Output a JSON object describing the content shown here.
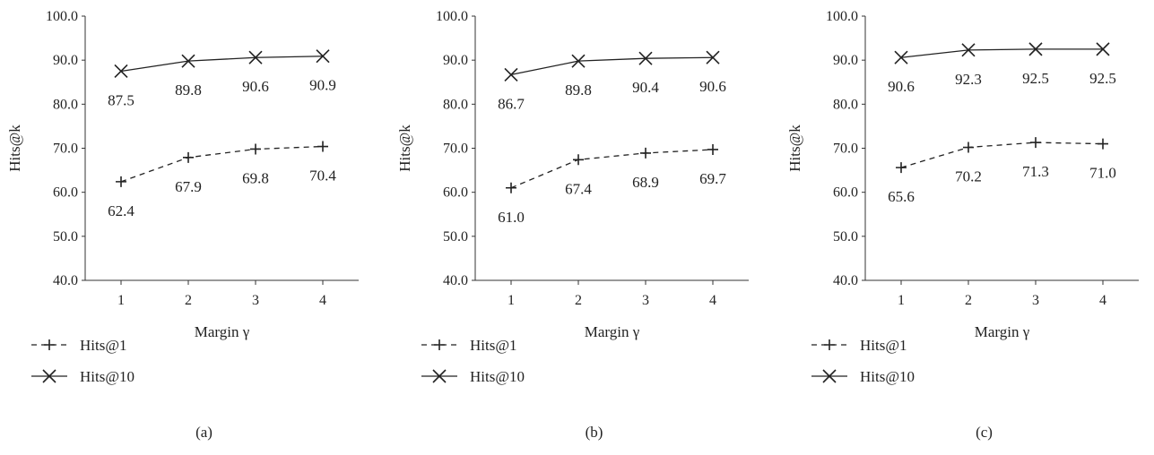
{
  "chart_data": [
    {
      "type": "line",
      "panel_label": "(a)",
      "xlabel": "Margin γ",
      "ylabel": "Hits@k",
      "categories": [
        "1",
        "2",
        "3",
        "4"
      ],
      "ylim": [
        40.0,
        100.0
      ],
      "yticks": [
        "40.0",
        "50.0",
        "60.0",
        "70.0",
        "80.0",
        "90.0",
        "100.0"
      ],
      "grid": false,
      "legend_position": "bottom-left",
      "series": [
        {
          "name": "Hits@1",
          "values": [
            62.4,
            67.9,
            69.8,
            70.4
          ],
          "labels": [
            "62.4",
            "67.9",
            "69.8",
            "70.4"
          ],
          "marker": "plus",
          "line_style": "dashed"
        },
        {
          "name": "Hits@10",
          "values": [
            87.5,
            89.8,
            90.6,
            90.9
          ],
          "labels": [
            "87.5",
            "89.8",
            "90.6",
            "90.9"
          ],
          "marker": "cross",
          "line_style": "solid"
        }
      ]
    },
    {
      "type": "line",
      "panel_label": "(b)",
      "xlabel": "Margin γ",
      "ylabel": "Hits@k",
      "categories": [
        "1",
        "2",
        "3",
        "4"
      ],
      "ylim": [
        40.0,
        100.0
      ],
      "yticks": [
        "40.0",
        "50.0",
        "60.0",
        "70.0",
        "80.0",
        "90.0",
        "100.0"
      ],
      "grid": false,
      "legend_position": "bottom-left",
      "series": [
        {
          "name": "Hits@1",
          "values": [
            61.0,
            67.4,
            68.9,
            69.7
          ],
          "labels": [
            "61.0",
            "67.4",
            "68.9",
            "69.7"
          ],
          "marker": "plus",
          "line_style": "dashed"
        },
        {
          "name": "Hits@10",
          "values": [
            86.7,
            89.8,
            90.4,
            90.6
          ],
          "labels": [
            "86.7",
            "89.8",
            "90.4",
            "90.6"
          ],
          "marker": "cross",
          "line_style": "solid"
        }
      ]
    },
    {
      "type": "line",
      "panel_label": "(c)",
      "xlabel": "Margin γ",
      "ylabel": "Hits@k",
      "categories": [
        "1",
        "2",
        "3",
        "4"
      ],
      "ylim": [
        40.0,
        100.0
      ],
      "yticks": [
        "40.0",
        "50.0",
        "60.0",
        "70.0",
        "80.0",
        "90.0",
        "100.0"
      ],
      "grid": false,
      "legend_position": "bottom-left",
      "series": [
        {
          "name": "Hits@1",
          "values": [
            65.6,
            70.2,
            71.3,
            71.0
          ],
          "labels": [
            "65.6",
            "70.2",
            "71.3",
            "71.0"
          ],
          "marker": "plus",
          "line_style": "dashed"
        },
        {
          "name": "Hits@10",
          "values": [
            90.6,
            92.3,
            92.5,
            92.5
          ],
          "labels": [
            "90.6",
            "92.3",
            "92.5",
            "92.5"
          ],
          "marker": "cross",
          "line_style": "solid"
        }
      ]
    }
  ],
  "colors": {
    "line": "#222222",
    "axis": "#333333",
    "text": "#222222"
  }
}
